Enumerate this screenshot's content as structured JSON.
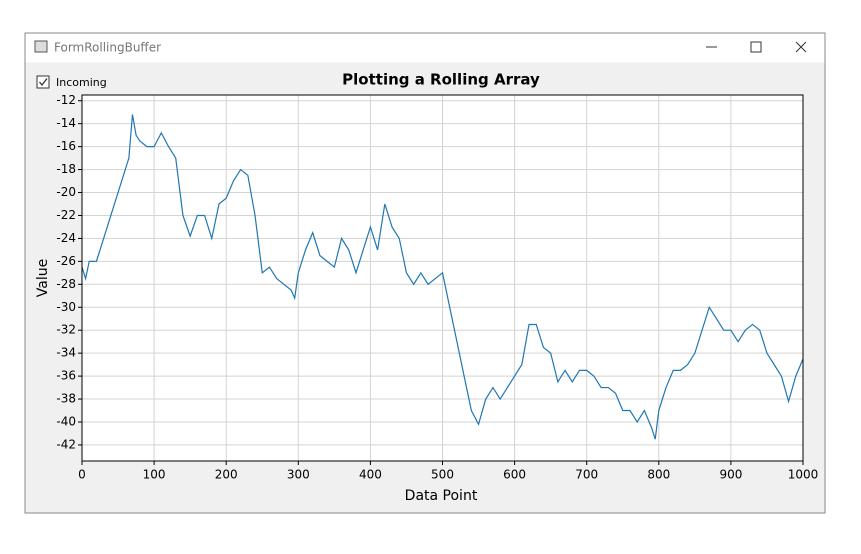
{
  "window": {
    "title": "FormRollingBuffer"
  },
  "checkbox": {
    "label": "Incoming",
    "checked": true
  },
  "chart_data": {
    "type": "line",
    "title": "Plotting a Rolling Array",
    "x_label": "Data Point",
    "y_label": "Value",
    "x": [
      0,
      5,
      10,
      20,
      30,
      40,
      50,
      60,
      65,
      70,
      75,
      80,
      90,
      100,
      110,
      120,
      130,
      140,
      150,
      160,
      170,
      180,
      190,
      200,
      210,
      220,
      230,
      240,
      250,
      260,
      270,
      280,
      290,
      295,
      300,
      310,
      320,
      330,
      340,
      350,
      360,
      370,
      380,
      390,
      400,
      410,
      420,
      430,
      440,
      450,
      460,
      470,
      480,
      490,
      500,
      510,
      520,
      530,
      540,
      550,
      560,
      570,
      580,
      590,
      600,
      610,
      620,
      630,
      640,
      650,
      660,
      670,
      680,
      690,
      700,
      710,
      720,
      730,
      740,
      750,
      760,
      770,
      780,
      790,
      795,
      800,
      810,
      820,
      830,
      840,
      850,
      860,
      870,
      880,
      890,
      900,
      910,
      920,
      930,
      940,
      950,
      960,
      970,
      980,
      990,
      1000
    ],
    "series": [
      {
        "name": "Value",
        "color": "#1f77b4",
        "values": [
          -26.5,
          -27.5,
          -26,
          -26,
          -24,
          -22,
          -20,
          -18,
          -17,
          -13.2,
          -15,
          -15.5,
          -16,
          -16,
          -14.8,
          -16,
          -17,
          -22,
          -23.8,
          -22,
          -22,
          -24,
          -21,
          -20.5,
          -19,
          -18,
          -18.5,
          -22,
          -27,
          -26.5,
          -27.5,
          -28,
          -28.5,
          -29.2,
          -27,
          -25,
          -23.5,
          -25.5,
          -26,
          -26.5,
          -24,
          -25,
          -27,
          -25,
          -23,
          -25,
          -21,
          -23,
          -24,
          -27,
          -28,
          -27,
          -28,
          -27.5,
          -27,
          -30,
          -33,
          -36,
          -39,
          -40.2,
          -38,
          -37,
          -38,
          -37,
          -36,
          -35,
          -31.5,
          -31.5,
          -33.5,
          -34,
          -36.5,
          -35.5,
          -36.5,
          -35.5,
          -35.5,
          -36,
          -37,
          -37,
          -37.5,
          -39,
          -39,
          -40,
          -39,
          -40.5,
          -41.5,
          -39,
          -37,
          -35.5,
          -35.5,
          -35,
          -34,
          -32,
          -30,
          -31,
          -32,
          -32,
          -33,
          -32,
          -31.5,
          -32,
          -34,
          -35,
          -36,
          -38.2,
          -36,
          -34.5
        ]
      }
    ],
    "xlim": [
      0,
      1000
    ],
    "ylim": [
      -43.4,
      -11.5
    ],
    "xticks": [
      0,
      100,
      200,
      300,
      400,
      500,
      600,
      700,
      800,
      900,
      1000
    ],
    "yticks": [
      -42,
      -40,
      -38,
      -36,
      -34,
      -32,
      -30,
      -28,
      -26,
      -24,
      -22,
      -20,
      -18,
      -16,
      -14,
      -12
    ],
    "grid": true
  }
}
